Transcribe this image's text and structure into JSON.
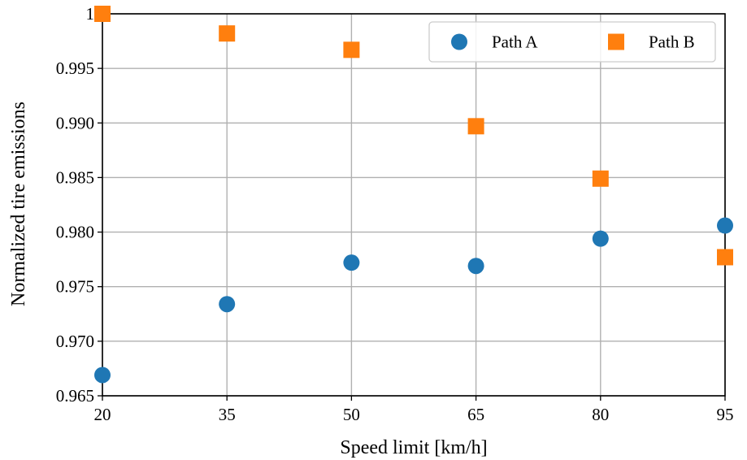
{
  "chart_data": {
    "type": "scatter",
    "title": "",
    "xlabel": "Speed limit [km/h]",
    "ylabel": "Normalized tire emissions",
    "x_ticks": [
      20,
      35,
      50,
      65,
      80,
      95
    ],
    "x_tick_labels": [
      "20",
      "35",
      "50",
      "65",
      "80",
      "95"
    ],
    "y_ticks": [
      0.965,
      0.97,
      0.975,
      0.98,
      0.985,
      0.99,
      0.995,
      1.0
    ],
    "y_tick_labels": [
      "0.965",
      "0.970",
      "0.975",
      "0.980",
      "0.985",
      "0.990",
      "0.995",
      "1"
    ],
    "xlim": [
      20,
      95
    ],
    "ylim": [
      0.965,
      1.0
    ],
    "grid": true,
    "legend_position": "top-right",
    "x": [
      20,
      35,
      50,
      65,
      80,
      95
    ],
    "series": [
      {
        "name": "Path A",
        "marker": "circle",
        "color": "#1f77b4",
        "values": [
          0.9669,
          0.9734,
          0.9772,
          0.9769,
          0.9794,
          0.9806
        ]
      },
      {
        "name": "Path B",
        "marker": "square",
        "color": "#ff7f0e",
        "values": [
          1.0,
          0.9982,
          0.9967,
          0.9897,
          0.9849,
          0.9777
        ]
      }
    ]
  }
}
